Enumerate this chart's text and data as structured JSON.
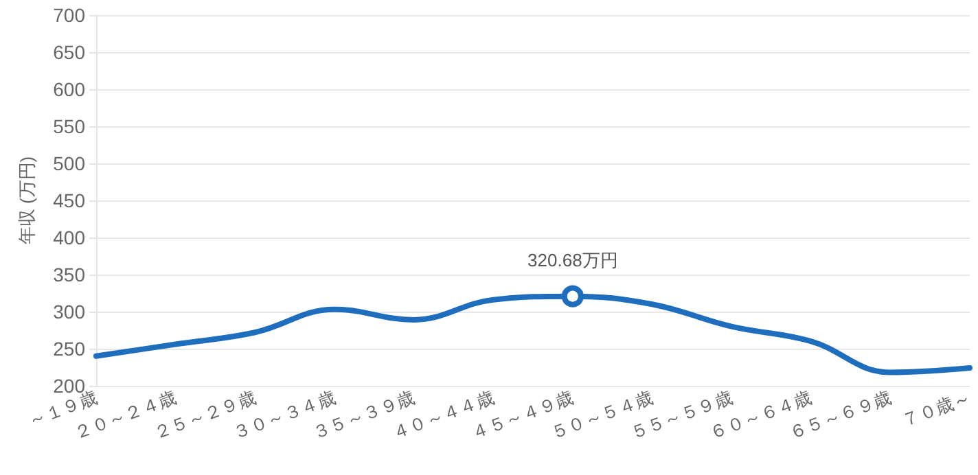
{
  "chart_data": {
    "type": "line",
    "ylabel": "年収 (万円)",
    "categories": [
      "～１９歳",
      "２０～２４歳",
      "２５～２９歳",
      "３０～３４歳",
      "３５～３９歳",
      "４０～４４歳",
      "４５～４９歳",
      "５０～５４歳",
      "５５～５９歳",
      "６０～６４歳",
      "６５～６９歳",
      "７０歳～"
    ],
    "series": [
      {
        "color": "#1f6dbd",
        "values": [
          240,
          256,
          272,
          303,
          289,
          316,
          320.68,
          310,
          280,
          260,
          218,
          224
        ],
        "value_labels": [
          null,
          null,
          null,
          null,
          null,
          null,
          "320.68万円",
          null,
          null,
          null,
          null,
          null
        ]
      }
    ],
    "ylim": [
      200,
      700
    ],
    "yticks": [
      200,
      250,
      300,
      350,
      400,
      450,
      500,
      550,
      600,
      650,
      700
    ],
    "grid": "y",
    "marker": "none"
  }
}
